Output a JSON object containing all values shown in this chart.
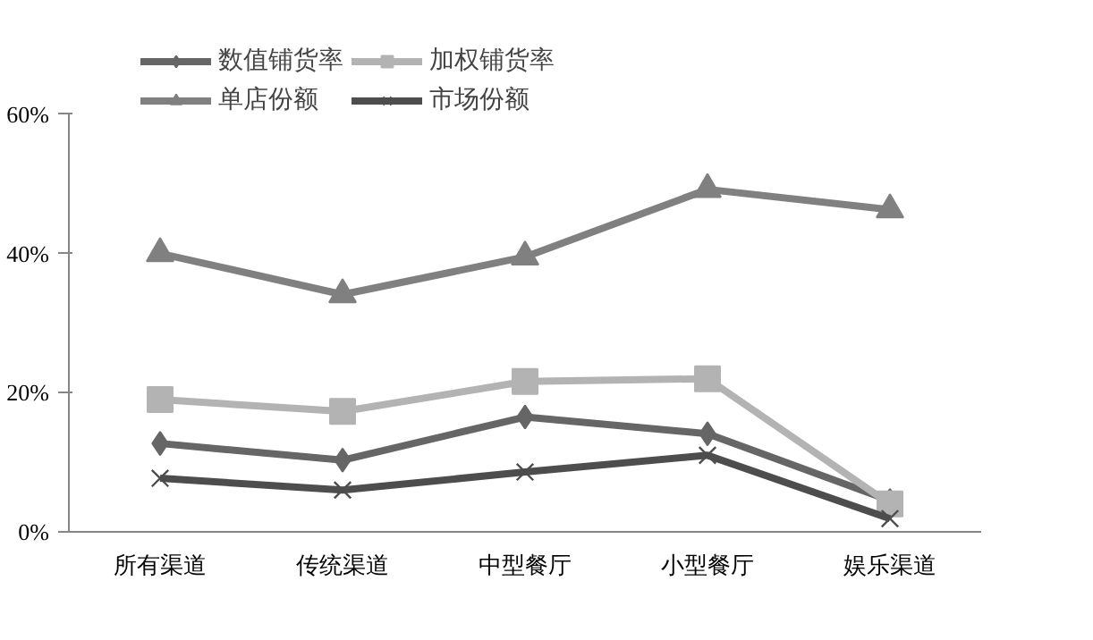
{
  "chart_data": {
    "type": "line",
    "categories": [
      "所有渠道",
      "传统渠道",
      "中型餐厅",
      "小型餐厅",
      "娱乐渠道"
    ],
    "series": [
      {
        "name": "数值铺货率",
        "color": "#666666",
        "marker": "diamond",
        "values": [
          12.7,
          10.3,
          16.5,
          14.1,
          4.5
        ]
      },
      {
        "name": "加权铺货率",
        "color": "#b3b3b3",
        "marker": "square",
        "values": [
          19,
          17.3,
          21.6,
          22,
          4
        ]
      },
      {
        "name": "单店份额",
        "color": "#808080",
        "marker": "triangle",
        "values": [
          40,
          34.1,
          39.5,
          49.2,
          46.3
        ]
      },
      {
        "name": "市场份额",
        "color": "#4d4d4d",
        "marker": "cross",
        "values": [
          7.7,
          6,
          8.6,
          11,
          1.9
        ]
      }
    ],
    "ylim": [
      0,
      60
    ],
    "yticks": [
      {
        "value": 0,
        "label": "0%"
      },
      {
        "value": 20,
        "label": "20%"
      },
      {
        "value": 40,
        "label": "40%"
      },
      {
        "value": 60,
        "label": "60%"
      }
    ],
    "grid": false,
    "legend": "top"
  }
}
